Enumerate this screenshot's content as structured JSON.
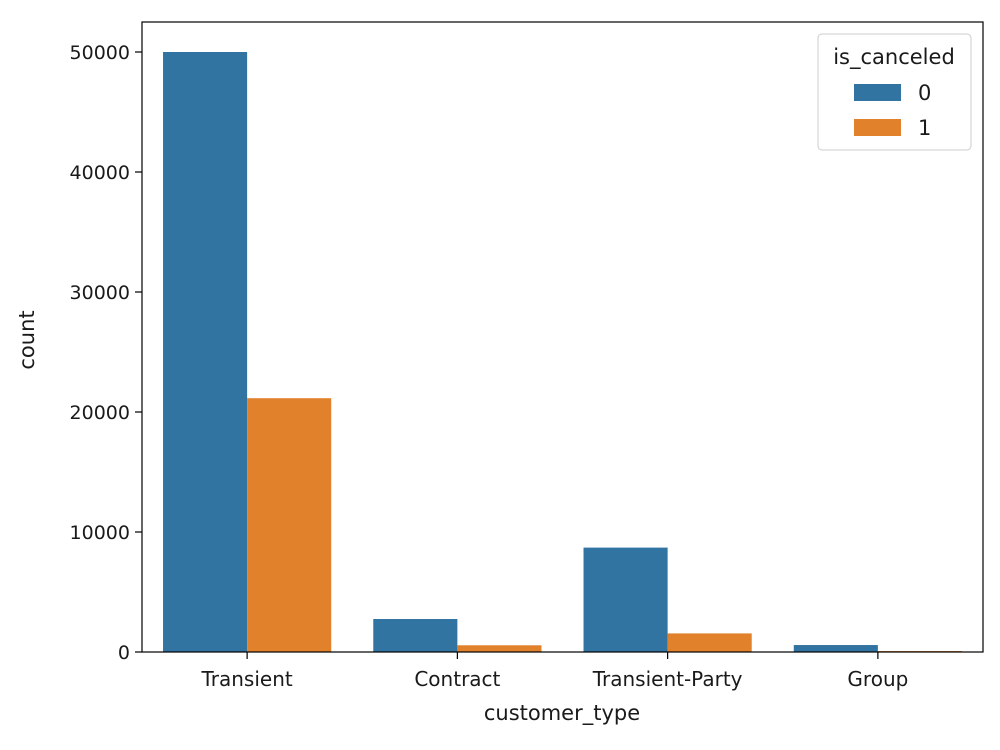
{
  "chart_data": {
    "type": "bar",
    "xlabel": "customer_type",
    "ylabel": "count",
    "categories": [
      "Transient",
      "Contract",
      "Transient-Party",
      "Group"
    ],
    "ylim": [
      0,
      52500
    ],
    "yticks": [
      0,
      10000,
      20000,
      30000,
      40000,
      50000
    ],
    "grid": false,
    "legend": {
      "title": "is_canceled",
      "placement": "top-right"
    },
    "series": [
      {
        "name": "0",
        "color": "#3274a1",
        "values": [
          50000,
          2750,
          8700,
          580
        ]
      },
      {
        "name": "1",
        "color": "#e1812c",
        "values": [
          21150,
          560,
          1550,
          80
        ]
      }
    ]
  }
}
